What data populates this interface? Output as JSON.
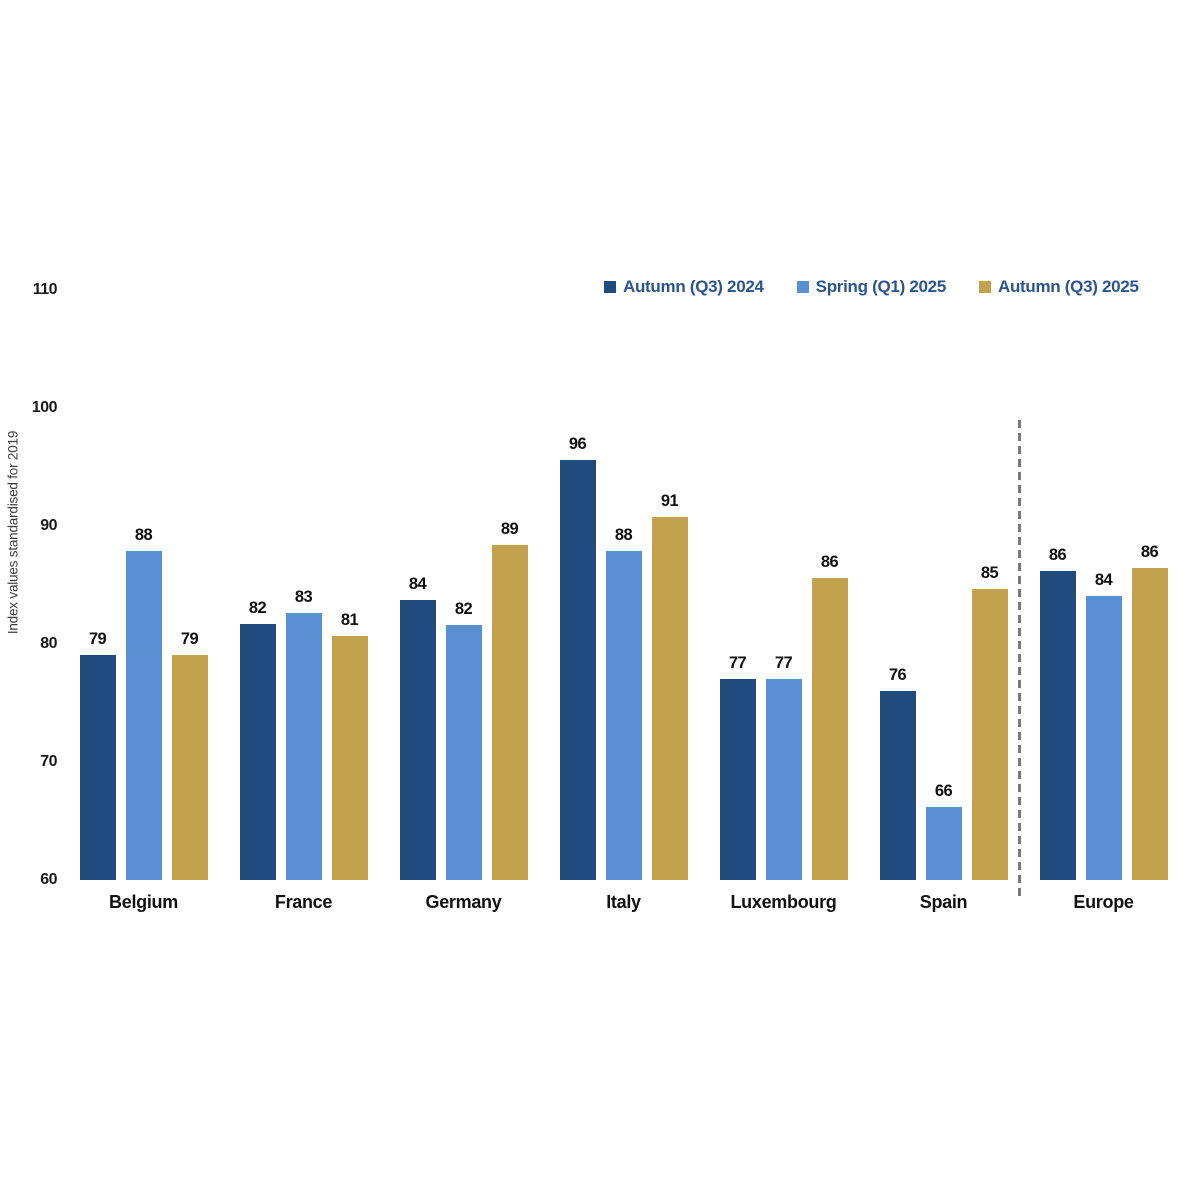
{
  "page": {
    "background": "#ffffff"
  },
  "chart_data": {
    "type": "bar",
    "title": "",
    "xlabel": "",
    "ylabel": "Index values standardised for 2019",
    "ylim": [
      60,
      110
    ],
    "yticks": [
      60,
      70,
      80,
      90,
      100,
      110
    ],
    "grid": false,
    "legend_position": "top-right",
    "categories": [
      "Belgium",
      "France",
      "Germany",
      "Italy",
      "Luxembourg",
      "Spain",
      "Europe"
    ],
    "separator": {
      "after_category": "Spain",
      "style": "dashed"
    },
    "series": [
      {
        "name": "Autumn (Q3) 2024",
        "color": "#214A7D",
        "values": [
          79,
          82,
          84,
          96,
          77,
          76,
          86
        ],
        "values_precise": [
          79.1,
          81.7,
          83.7,
          95.6,
          77.0,
          76.0,
          86.2
        ]
      },
      {
        "name": "Spring (Q1) 2025",
        "color": "#5890D2",
        "values": [
          88,
          83,
          82,
          88,
          77,
          66,
          84
        ],
        "values_precise": [
          87.9,
          82.6,
          81.6,
          87.9,
          77.0,
          66.2,
          84.1
        ]
      },
      {
        "name": "Autumn (Q3) 2025",
        "color": "#C3A24F",
        "values": [
          79,
          81,
          89,
          91,
          86,
          85,
          86
        ],
        "values_precise": [
          79.1,
          80.7,
          88.4,
          90.8,
          85.6,
          84.7,
          86.4
        ]
      }
    ],
    "colors": {
      "axis_text": "#1a1a1a",
      "value_label_text": "#111111",
      "legend_text": "#2B5490",
      "separator": "#7a7a7a"
    }
  }
}
